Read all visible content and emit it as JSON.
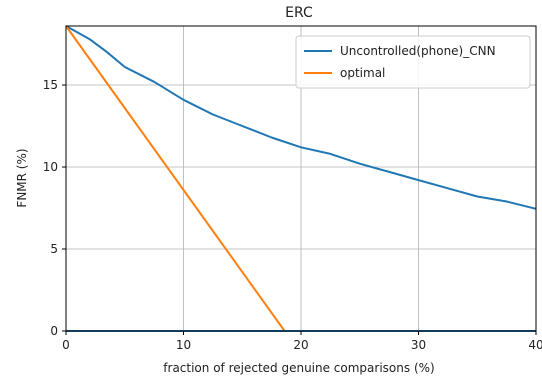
{
  "chart_data": {
    "type": "line",
    "title": "ERC",
    "xlabel": "fraction of rejected genuine comparisons (%)",
    "ylabel": "FNMR (%)",
    "xlim": [
      0,
      40
    ],
    "ylim": [
      0,
      18.6
    ],
    "x_ticks": [
      0,
      10,
      20,
      30,
      40
    ],
    "y_ticks": [
      0,
      5,
      10,
      15
    ],
    "grid": true,
    "legend_position": "top-right",
    "series": [
      {
        "name": "Uncontrolled(phone)_CNN",
        "color": "#1f77b4",
        "points": [
          [
            0,
            18.6
          ],
          [
            2,
            17.8
          ],
          [
            3.5,
            17.0
          ],
          [
            5,
            16.1
          ],
          [
            7.5,
            15.2
          ],
          [
            10,
            14.1
          ],
          [
            12.5,
            13.2
          ],
          [
            15,
            12.5
          ],
          [
            17.5,
            11.8
          ],
          [
            20,
            11.2
          ],
          [
            22.5,
            10.8
          ],
          [
            25,
            10.2
          ],
          [
            27.5,
            9.7
          ],
          [
            30,
            9.2
          ],
          [
            32.5,
            8.7
          ],
          [
            35,
            8.2
          ],
          [
            37.5,
            7.9
          ],
          [
            40,
            7.45
          ]
        ]
      },
      {
        "name": "optimal",
        "color": "#ff7f0e",
        "points": [
          [
            0,
            18.6
          ],
          [
            18.6,
            0
          ]
        ]
      }
    ],
    "baseline": {
      "color": "#1f77b4",
      "y": 0
    }
  }
}
